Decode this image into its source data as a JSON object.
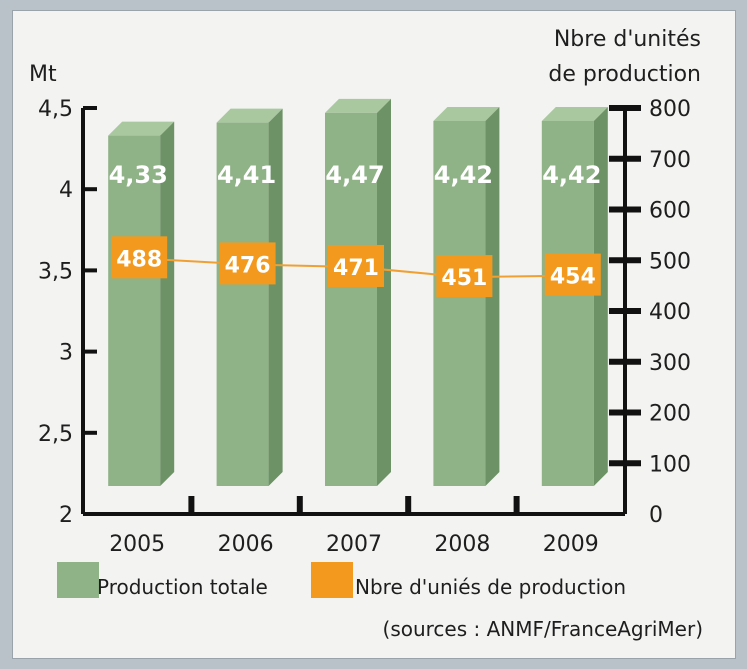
{
  "chart_data": {
    "type": "bar",
    "categories": [
      "2005",
      "2006",
      "2007",
      "2008",
      "2009"
    ],
    "series": [
      {
        "name": "Production totale",
        "values": [
          4.33,
          4.41,
          4.47,
          4.42,
          4.42
        ],
        "axis": "left",
        "kind": "bar",
        "labels": [
          "4,33",
          "4,41",
          "4,47",
          "4,42",
          "4,42"
        ]
      },
      {
        "name": "Nbre d'uniés de production",
        "values": [
          488,
          476,
          471,
          451,
          454
        ],
        "axis": "right",
        "kind": "line",
        "labels": [
          "488",
          "476",
          "471",
          "451",
          "454"
        ]
      }
    ],
    "left_axis": {
      "label": "Mt",
      "ylim": [
        2,
        4.5
      ],
      "ticks": [
        2,
        2.5,
        3,
        3.5,
        4,
        4.5
      ],
      "tick_labels": [
        "2",
        "2,5",
        "3",
        "3,5",
        "4",
        "4,5"
      ]
    },
    "right_axis": {
      "label_line1": "Nbre d'unités",
      "label_line2": "de production",
      "ylim": [
        0,
        800
      ],
      "ticks": [
        0,
        100,
        200,
        300,
        400,
        500,
        600,
        700,
        800
      ],
      "tick_labels": [
        "0",
        "100",
        "200",
        "300",
        "400",
        "500",
        "600",
        "700",
        "800"
      ]
    },
    "legend": {
      "placement": "bottom",
      "items": [
        "Production totale",
        "Nbre d'uniés de production"
      ]
    },
    "source": "(sources : ANMF/FranceAgriMer)",
    "grid": false,
    "colors": {
      "bar_front": "#8fb287",
      "bar_side": "#6d9266",
      "bar_top": "#a9c8a0",
      "line": "#f0a033",
      "unit_box": "#f39a1e",
      "axis": "#111111"
    }
  }
}
